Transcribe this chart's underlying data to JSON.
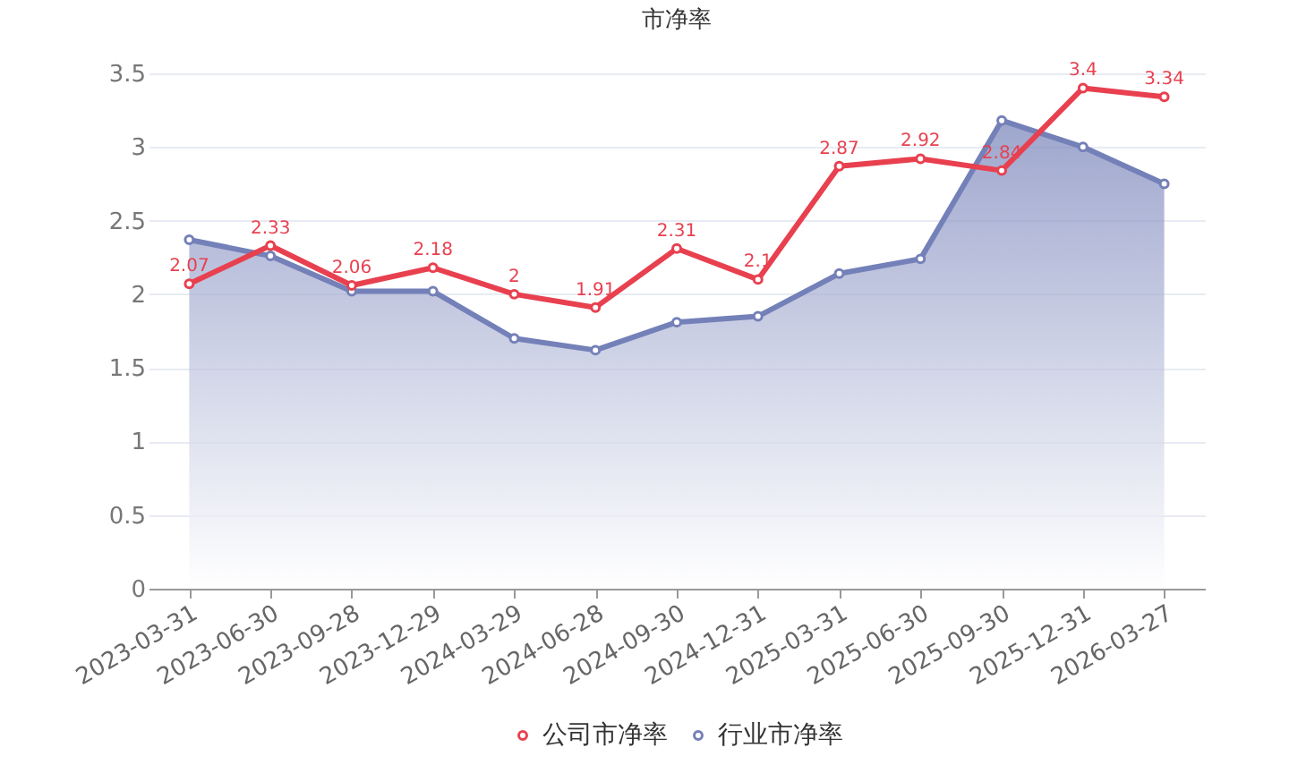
{
  "chart_data": {
    "type": "line",
    "title": "市净率",
    "categories": [
      "2023-03-31",
      "2023-06-30",
      "2023-09-28",
      "2023-12-29",
      "2024-03-29",
      "2024-06-28",
      "2024-09-30",
      "2024-12-31",
      "2025-03-31",
      "2025-06-30",
      "2025-09-30",
      "2025-12-31",
      "2026-03-27"
    ],
    "series": [
      {
        "name": "公司市净率",
        "color": "#e8404f",
        "values": [
          2.07,
          2.33,
          2.06,
          2.18,
          2,
          1.91,
          2.31,
          2.1,
          2.87,
          2.92,
          2.84,
          3.4,
          3.34
        ],
        "value_labels": [
          "2.07",
          "2.33",
          "2.06",
          "2.18",
          "2",
          "1.91",
          "2.31",
          "2.1",
          "2.87",
          "2.92",
          "2.84",
          "3.4",
          "3.34"
        ]
      },
      {
        "name": "行业市净率",
        "type": "area",
        "color": "#7480b8",
        "values": [
          2.37,
          2.26,
          2.02,
          2.02,
          1.7,
          1.62,
          1.81,
          1.85,
          2.14,
          2.24,
          3.18,
          3.0,
          2.75
        ]
      }
    ],
    "ylim": [
      0,
      3.5
    ],
    "yticks": [
      0,
      0.5,
      1,
      1.5,
      2,
      2.5,
      3,
      3.5
    ],
    "grid": "y",
    "legend": "bottom",
    "marker": "circle",
    "line_style": "solid"
  }
}
